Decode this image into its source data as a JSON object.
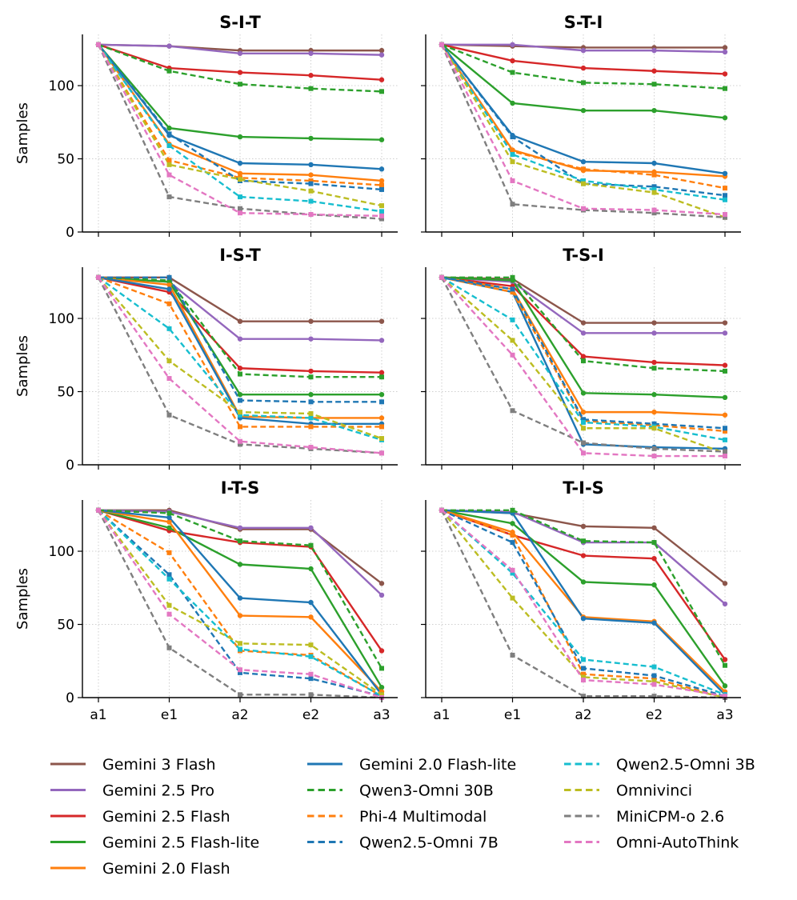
{
  "chart_data": {
    "type": "line",
    "ylabel": "Samples",
    "ylim": [
      0,
      135
    ],
    "yticks": [
      0,
      50,
      100
    ],
    "x": [
      "a1",
      "e1",
      "a2",
      "e2",
      "a3"
    ],
    "grid": true,
    "legend_position": "bottom",
    "series_styles": [
      {
        "name": "Gemini 3 Flash",
        "color": "#8c564b",
        "dash": false,
        "marker": "circle"
      },
      {
        "name": "Gemini 2.5 Pro",
        "color": "#9467bd",
        "dash": false,
        "marker": "circle"
      },
      {
        "name": "Gemini 2.5 Flash",
        "color": "#d62728",
        "dash": false,
        "marker": "circle"
      },
      {
        "name": "Gemini 2.5 Flash-lite",
        "color": "#2ca02c",
        "dash": false,
        "marker": "circle"
      },
      {
        "name": "Gemini 2.0 Flash",
        "color": "#ff7f0e",
        "dash": false,
        "marker": "circle"
      },
      {
        "name": "Gemini 2.0 Flash-lite",
        "color": "#1f77b4",
        "dash": false,
        "marker": "circle"
      },
      {
        "name": "Qwen3-Omni 30B",
        "color": "#2ca02c",
        "dash": true,
        "marker": "square"
      },
      {
        "name": "Phi-4 Multimodal",
        "color": "#ff7f0e",
        "dash": true,
        "marker": "square"
      },
      {
        "name": "Qwen2.5-Omni 7B",
        "color": "#1f77b4",
        "dash": true,
        "marker": "square"
      },
      {
        "name": "Qwen2.5-Omni 3B",
        "color": "#17becf",
        "dash": true,
        "marker": "square"
      },
      {
        "name": "Omnivinci",
        "color": "#bcbd22",
        "dash": true,
        "marker": "square"
      },
      {
        "name": "MiniCPM-o 2.6",
        "color": "#7f7f7f",
        "dash": true,
        "marker": "square"
      },
      {
        "name": "Omni-AutoThink",
        "color": "#e377c2",
        "dash": true,
        "marker": "square"
      }
    ],
    "panels": [
      {
        "title": "S-I-T",
        "series": [
          {
            "name": "Gemini 3 Flash",
            "values": [
              128,
              127,
              124,
              124,
              124
            ]
          },
          {
            "name": "Gemini 2.5 Pro",
            "values": [
              128,
              127,
              122,
              122,
              121
            ]
          },
          {
            "name": "Gemini 2.5 Flash",
            "values": [
              128,
              112,
              109,
              107,
              104
            ]
          },
          {
            "name": "Gemini 2.5 Flash-lite",
            "values": [
              128,
              71,
              65,
              64,
              63
            ]
          },
          {
            "name": "Gemini 2.0 Flash",
            "values": [
              128,
              60,
              40,
              39,
              35
            ]
          },
          {
            "name": "Gemini 2.0 Flash-lite",
            "values": [
              128,
              66,
              47,
              46,
              43
            ]
          },
          {
            "name": "Qwen3-Omni 30B",
            "values": [
              128,
              110,
              101,
              98,
              96
            ]
          },
          {
            "name": "Phi-4 Multimodal",
            "values": [
              128,
              49,
              37,
              35,
              32
            ]
          },
          {
            "name": "Qwen2.5-Omni 7B",
            "values": [
              128,
              67,
              35,
              33,
              29
            ]
          },
          {
            "name": "Qwen2.5-Omni 3B",
            "values": [
              128,
              59,
              24,
              21,
              14
            ]
          },
          {
            "name": "Omnivinci",
            "values": [
              128,
              46,
              36,
              28,
              18
            ]
          },
          {
            "name": "MiniCPM-o 2.6",
            "values": [
              128,
              24,
              16,
              12,
              9
            ]
          },
          {
            "name": "Omni-AutoThink",
            "values": [
              128,
              39,
              13,
              12,
              11
            ]
          }
        ]
      },
      {
        "title": "S-T-I",
        "series": [
          {
            "name": "Gemini 3 Flash",
            "values": [
              128,
              127,
              126,
              126,
              126
            ]
          },
          {
            "name": "Gemini 2.5 Pro",
            "values": [
              128,
              128,
              124,
              124,
              123
            ]
          },
          {
            "name": "Gemini 2.5 Flash",
            "values": [
              128,
              117,
              112,
              110,
              108
            ]
          },
          {
            "name": "Gemini 2.5 Flash-lite",
            "values": [
              128,
              88,
              83,
              83,
              78
            ]
          },
          {
            "name": "Gemini 2.0 Flash",
            "values": [
              128,
              56,
              42,
              41,
              38
            ]
          },
          {
            "name": "Gemini 2.0 Flash-lite",
            "values": [
              128,
              66,
              48,
              47,
              40
            ]
          },
          {
            "name": "Qwen3-Omni 30B",
            "values": [
              128,
              109,
              102,
              101,
              98
            ]
          },
          {
            "name": "Phi-4 Multimodal",
            "values": [
              128,
              55,
              43,
              39,
              30
            ]
          },
          {
            "name": "Qwen2.5-Omni 7B",
            "values": [
              128,
              65,
              33,
              31,
              25
            ]
          },
          {
            "name": "Qwen2.5-Omni 3B",
            "values": [
              128,
              53,
              35,
              29,
              22
            ]
          },
          {
            "name": "Omnivinci",
            "values": [
              128,
              48,
              33,
              27,
              10
            ]
          },
          {
            "name": "MiniCPM-o 2.6",
            "values": [
              128,
              19,
              15,
              13,
              10
            ]
          },
          {
            "name": "Omni-AutoThink",
            "values": [
              128,
              35,
              16,
              15,
              12
            ]
          }
        ]
      },
      {
        "title": "I-S-T",
        "series": [
          {
            "name": "Gemini 3 Flash",
            "values": [
              128,
              128,
              98,
              98,
              98
            ]
          },
          {
            "name": "Gemini 2.5 Pro",
            "values": [
              128,
              125,
              86,
              86,
              85
            ]
          },
          {
            "name": "Gemini 2.5 Flash",
            "values": [
              128,
              118,
              66,
              64,
              63
            ]
          },
          {
            "name": "Gemini 2.5 Flash-lite",
            "values": [
              128,
              125,
              48,
              48,
              48
            ]
          },
          {
            "name": "Gemini 2.0 Flash",
            "values": [
              128,
              123,
              33,
              32,
              32
            ]
          },
          {
            "name": "Gemini 2.0 Flash-lite",
            "values": [
              128,
              120,
              32,
              28,
              28
            ]
          },
          {
            "name": "Qwen3-Omni 30B",
            "values": [
              128,
              126,
              62,
              60,
              60
            ]
          },
          {
            "name": "Phi-4 Multimodal",
            "values": [
              128,
              110,
              26,
              26,
              26
            ]
          },
          {
            "name": "Qwen2.5-Omni 7B",
            "values": [
              128,
              128,
              44,
              43,
              43
            ]
          },
          {
            "name": "Qwen2.5-Omni 3B",
            "values": [
              128,
              93,
              34,
              32,
              17
            ]
          },
          {
            "name": "Omnivinci",
            "values": [
              128,
              71,
              36,
              35,
              18
            ]
          },
          {
            "name": "MiniCPM-o 2.6",
            "values": [
              128,
              34,
              14,
              11,
              8
            ]
          },
          {
            "name": "Omni-AutoThink",
            "values": [
              128,
              59,
              16,
              12,
              8
            ]
          }
        ]
      },
      {
        "title": "T-S-I",
        "series": [
          {
            "name": "Gemini 3 Flash",
            "values": [
              128,
              127,
              97,
              97,
              97
            ]
          },
          {
            "name": "Gemini 2.5 Pro",
            "values": [
              128,
              125,
              90,
              90,
              90
            ]
          },
          {
            "name": "Gemini 2.5 Flash",
            "values": [
              128,
              122,
              74,
              70,
              68
            ]
          },
          {
            "name": "Gemini 2.5 Flash-lite",
            "values": [
              128,
              126,
              49,
              48,
              46
            ]
          },
          {
            "name": "Gemini 2.0 Flash",
            "values": [
              128,
              120,
              36,
              36,
              34
            ]
          },
          {
            "name": "Gemini 2.0 Flash-lite",
            "values": [
              128,
              118,
              14,
              12,
              11
            ]
          },
          {
            "name": "Qwen3-Omni 30B",
            "values": [
              128,
              128,
              71,
              66,
              64
            ]
          },
          {
            "name": "Phi-4 Multimodal",
            "values": [
              128,
              118,
              30,
              27,
              23
            ]
          },
          {
            "name": "Qwen2.5-Omni 7B",
            "values": [
              128,
              120,
              31,
              28,
              25
            ]
          },
          {
            "name": "Qwen2.5-Omni 3B",
            "values": [
              128,
              99,
              29,
              26,
              17
            ]
          },
          {
            "name": "Omnivinci",
            "values": [
              128,
              85,
              25,
              25,
              8
            ]
          },
          {
            "name": "MiniCPM-o 2.6",
            "values": [
              128,
              37,
              15,
              11,
              9
            ]
          },
          {
            "name": "Omni-AutoThink",
            "values": [
              128,
              75,
              8,
              6,
              6
            ]
          }
        ]
      },
      {
        "title": "I-T-S",
        "series": [
          {
            "name": "Gemini 3 Flash",
            "values": [
              128,
              128,
              115,
              115,
              78
            ]
          },
          {
            "name": "Gemini 2.5 Pro",
            "values": [
              128,
              127,
              116,
              116,
              70
            ]
          },
          {
            "name": "Gemini 2.5 Flash",
            "values": [
              128,
              114,
              106,
              103,
              32
            ]
          },
          {
            "name": "Gemini 2.5 Flash-lite",
            "values": [
              128,
              116,
              91,
              88,
              7
            ]
          },
          {
            "name": "Gemini 2.0 Flash",
            "values": [
              128,
              120,
              56,
              55,
              4
            ]
          },
          {
            "name": "Gemini 2.0 Flash-lite",
            "values": [
              128,
              123,
              68,
              65,
              2
            ]
          },
          {
            "name": "Qwen3-Omni 30B",
            "values": [
              128,
              126,
              107,
              104,
              20
            ]
          },
          {
            "name": "Phi-4 Multimodal",
            "values": [
              128,
              99,
              32,
              29,
              1
            ]
          },
          {
            "name": "Qwen2.5-Omni 7B",
            "values": [
              128,
              84,
              17,
              13,
              1
            ]
          },
          {
            "name": "Qwen2.5-Omni 3B",
            "values": [
              128,
              81,
              33,
              28,
              1
            ]
          },
          {
            "name": "Omnivinci",
            "values": [
              128,
              63,
              37,
              36,
              2
            ]
          },
          {
            "name": "MiniCPM-o 2.6",
            "values": [
              128,
              34,
              2,
              2,
              0
            ]
          },
          {
            "name": "Omni-AutoThink",
            "values": [
              128,
              57,
              19,
              16,
              0
            ]
          }
        ]
      },
      {
        "title": "T-I-S",
        "series": [
          {
            "name": "Gemini 3 Flash",
            "values": [
              128,
              126,
              117,
              116,
              78
            ]
          },
          {
            "name": "Gemini 2.5 Pro",
            "values": [
              128,
              127,
              106,
              106,
              64
            ]
          },
          {
            "name": "Gemini 2.5 Flash",
            "values": [
              128,
              111,
              97,
              95,
              26
            ]
          },
          {
            "name": "Gemini 2.5 Flash-lite",
            "values": [
              128,
              119,
              79,
              77,
              8
            ]
          },
          {
            "name": "Gemini 2.0 Flash",
            "values": [
              128,
              113,
              55,
              52,
              4
            ]
          },
          {
            "name": "Gemini 2.0 Flash-lite",
            "values": [
              128,
              126,
              54,
              51,
              2
            ]
          },
          {
            "name": "Qwen3-Omni 30B",
            "values": [
              128,
              128,
              107,
              106,
              22
            ]
          },
          {
            "name": "Phi-4 Multimodal",
            "values": [
              128,
              111,
              16,
              13,
              0
            ]
          },
          {
            "name": "Qwen2.5-Omni 7B",
            "values": [
              128,
              106,
              20,
              15,
              1
            ]
          },
          {
            "name": "Qwen2.5-Omni 3B",
            "values": [
              128,
              85,
              26,
              21,
              2
            ]
          },
          {
            "name": "Omnivinci",
            "values": [
              128,
              68,
              14,
              11,
              0
            ]
          },
          {
            "name": "MiniCPM-o 2.6",
            "values": [
              128,
              29,
              1,
              1,
              0
            ]
          },
          {
            "name": "Omni-AutoThink",
            "values": [
              128,
              87,
              12,
              9,
              1
            ]
          }
        ]
      }
    ]
  }
}
